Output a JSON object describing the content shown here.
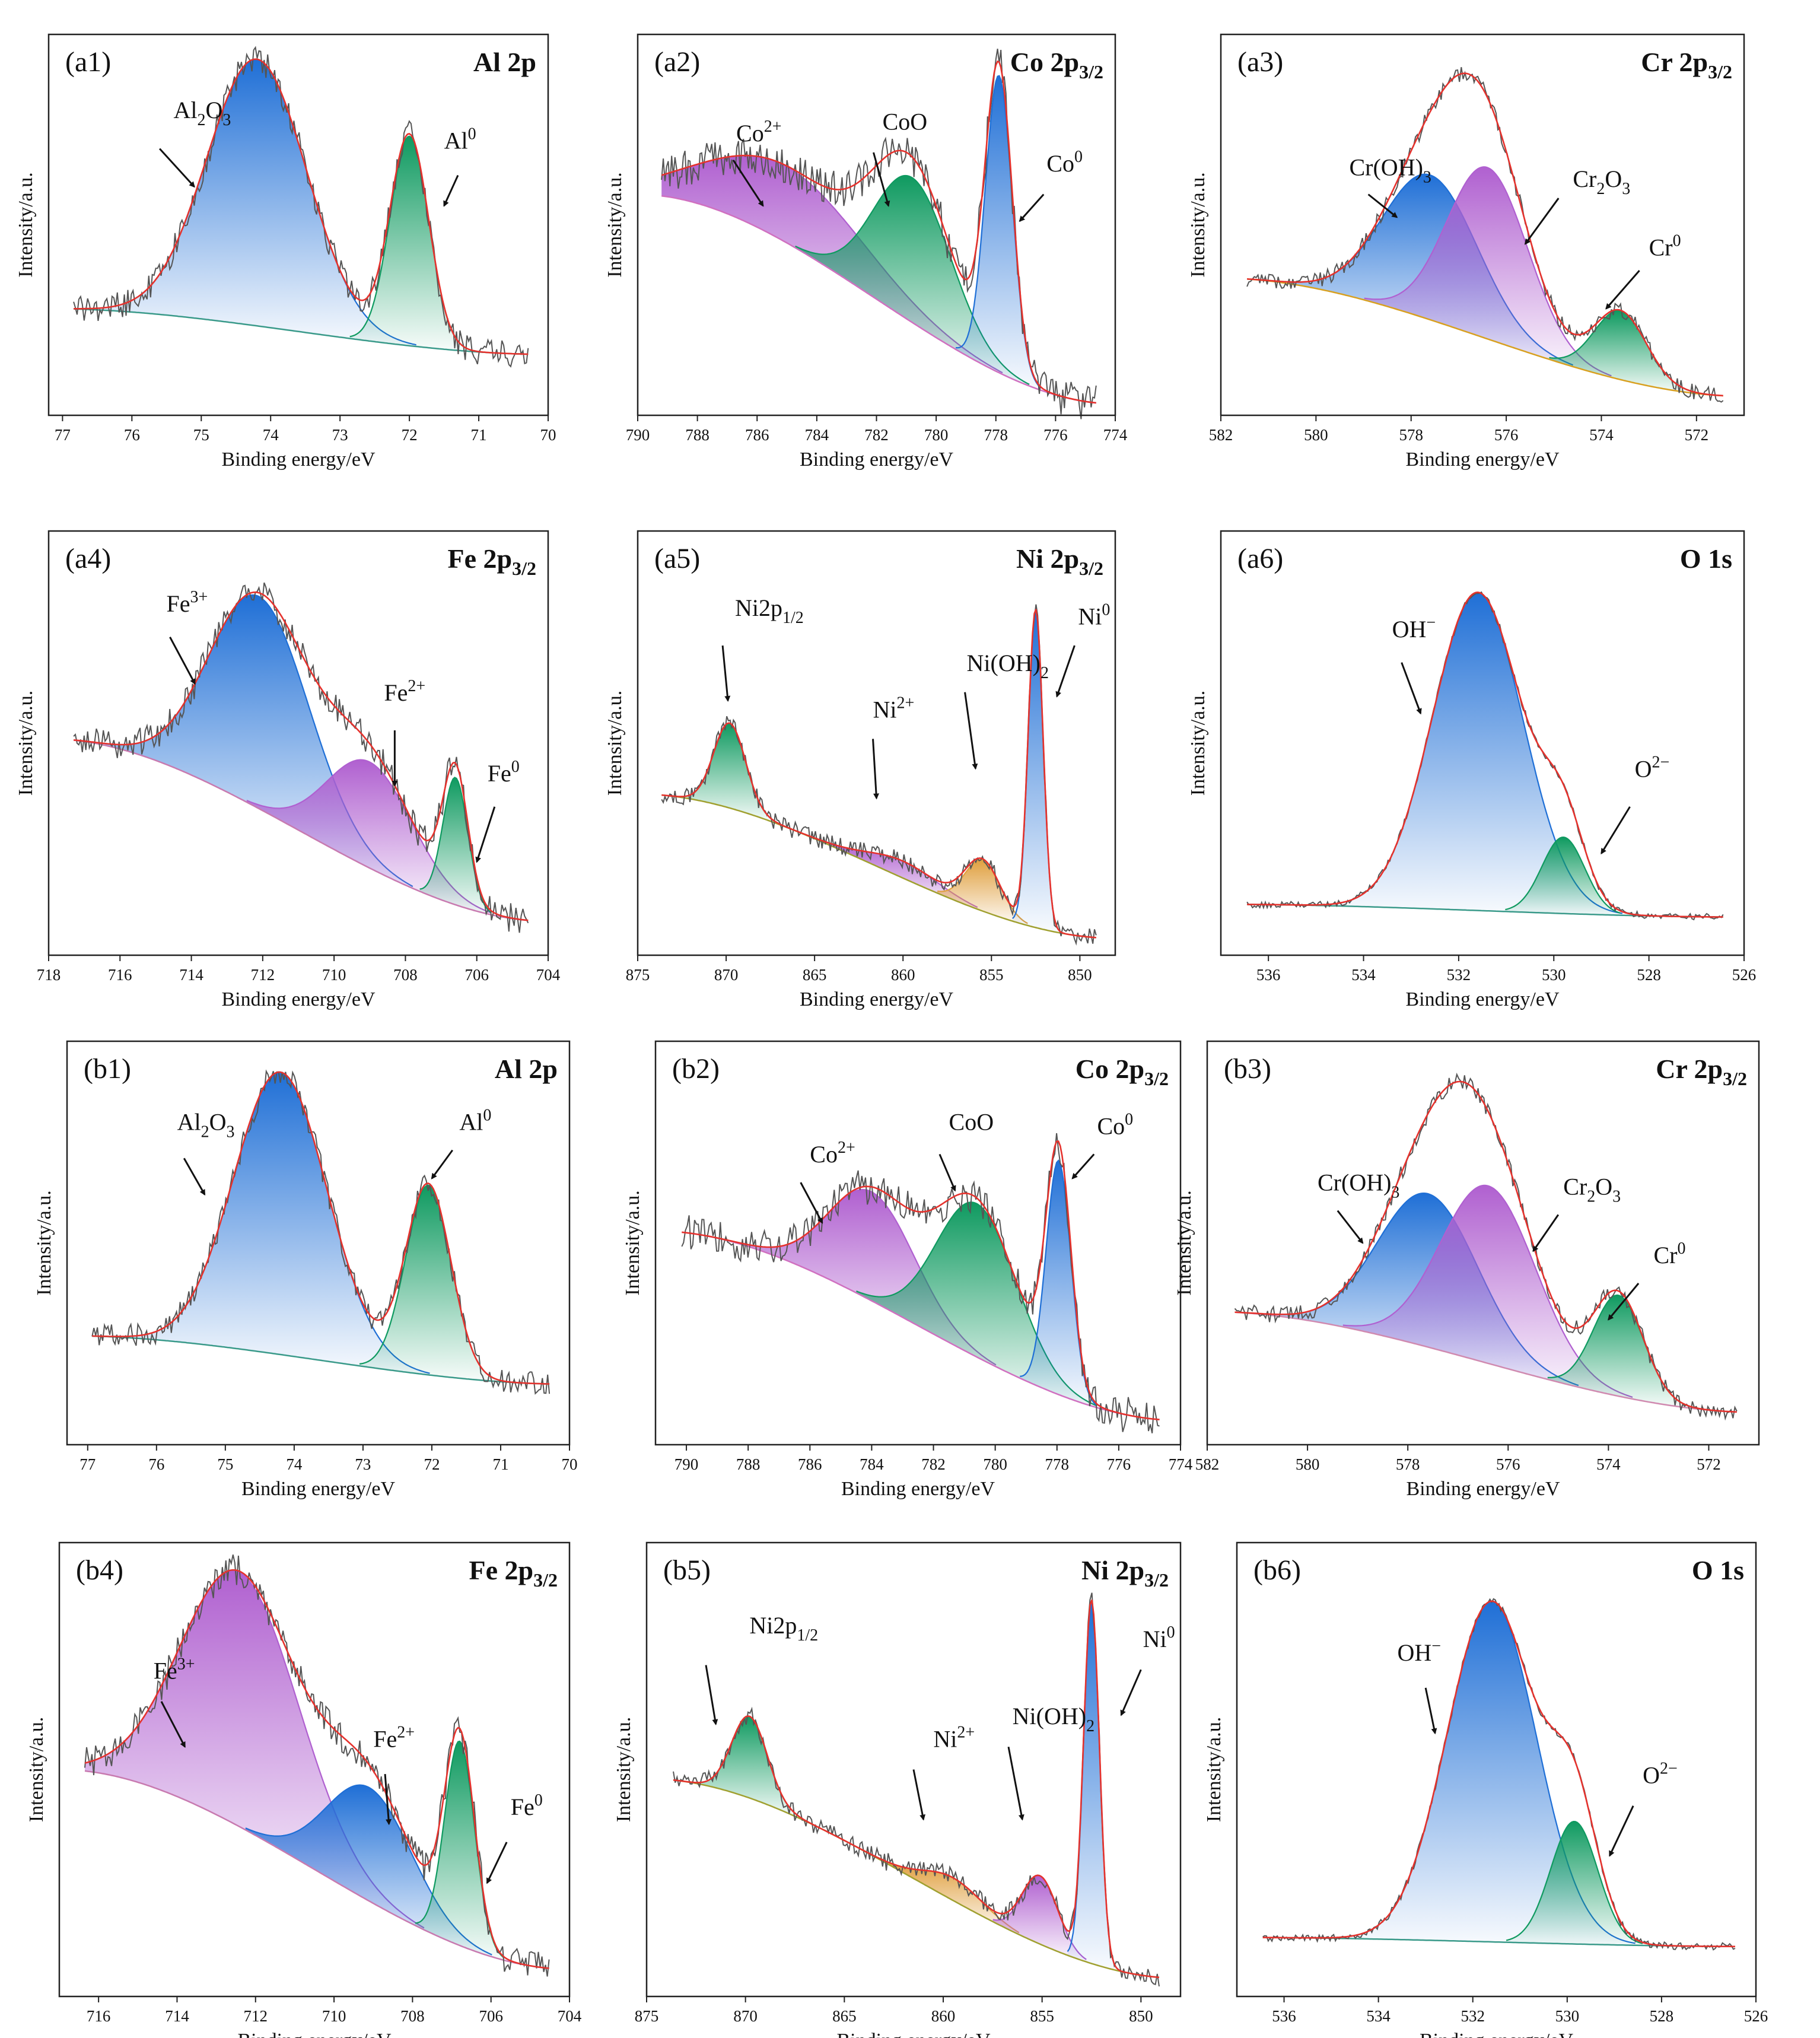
{
  "figure": {
    "description_note": "",
    "y_axis_label": "Intensity/a.u.",
    "x_axis_label": "Binding energy/eV"
  },
  "chart_data": [
    {
      "id": "a1",
      "panel_label": "(a1)",
      "title": "Al 2p",
      "type": "line",
      "xlabel": "Binding energy/eV",
      "ylabel": "Intensity/a.u.",
      "xlim": [
        77.2,
        70
      ],
      "xticks": [
        77,
        76,
        75,
        74,
        73,
        72,
        71,
        70
      ],
      "baseline": {
        "left": 0.72,
        "right": 0.84,
        "color": "#3a9a8a"
      },
      "peaks": [
        {
          "name": "Al2O3",
          "center": 74.2,
          "sigma": 0.72,
          "amp": 0.7,
          "color": "#1f6fd6"
        },
        {
          "name": "Al0",
          "center": 72.0,
          "sigma": 0.28,
          "amp": 0.55,
          "color": "#0f9a60"
        }
      ],
      "noise": 0.035,
      "annotations": [
        {
          "text": "Al",
          "sub": "2",
          "text2": "O",
          "sub2": "3",
          "x": 75.4,
          "y": 0.22,
          "ax": 75.6,
          "ay": 0.3,
          "bx": 75.1,
          "by": 0.4
        },
        {
          "text": "Al",
          "sup": "0",
          "x": 71.5,
          "y": 0.3,
          "ax": 71.3,
          "ay": 0.37,
          "bx": 71.5,
          "by": 0.45
        }
      ]
    },
    {
      "id": "a2",
      "panel_label": "(a2)",
      "title": "Co 2p3/2",
      "title_base": "Co 2p",
      "title_sub": "3/2",
      "type": "line",
      "xlabel": "Binding energy/eV",
      "ylabel": "Intensity/a.u.",
      "xlim": [
        790,
        774
      ],
      "xticks": [
        790,
        788,
        786,
        784,
        782,
        780,
        778,
        776,
        774
      ],
      "baseline": {
        "left": 0.42,
        "right": 0.97,
        "color": "#d070c0"
      },
      "peaks": [
        {
          "name": "Co2+",
          "center": 785.0,
          "sigma": 2.6,
          "amp": 0.2,
          "color": "#b060d0"
        },
        {
          "name": "CoO",
          "center": 780.8,
          "sigma": 1.3,
          "amp": 0.38,
          "color": "#0f9a60"
        },
        {
          "name": "Co0",
          "center": 777.9,
          "sigma": 0.45,
          "amp": 0.78,
          "color": "#1f6fd6"
        }
      ],
      "noise": 0.05,
      "annotations": [
        {
          "text": "Co",
          "sup": "2+",
          "x": 786.7,
          "y": 0.28,
          "ax": 786.8,
          "ay": 0.33,
          "bx": 785.8,
          "by": 0.45
        },
        {
          "text": "CoO",
          "x": 781.8,
          "y": 0.25,
          "ax": 782.1,
          "ay": 0.31,
          "bx": 781.6,
          "by": 0.45
        },
        {
          "text": "Co",
          "sup": "0",
          "x": 776.3,
          "y": 0.36,
          "ax": 776.4,
          "ay": 0.42,
          "bx": 777.2,
          "by": 0.49
        }
      ]
    },
    {
      "id": "a3",
      "panel_label": "(a3)",
      "title": "Cr 2p3/2",
      "title_base": "Cr 2p",
      "title_sub": "3/2",
      "type": "line",
      "xlabel": "Binding energy/eV",
      "ylabel": "Intensity/a.u.",
      "xlim": [
        582,
        571
      ],
      "xticks": [
        582,
        580,
        578,
        576,
        574,
        572
      ],
      "baseline": {
        "left": 0.64,
        "right": 0.95,
        "color": "#d8a020"
      },
      "peaks": [
        {
          "name": "Cr(OH)3",
          "center": 577.6,
          "sigma": 1.0,
          "amp": 0.38,
          "color": "#1f6fd6"
        },
        {
          "name": "Cr2O3",
          "center": 576.4,
          "sigma": 0.85,
          "amp": 0.45,
          "color": "#b060d0"
        },
        {
          "name": "Cr0",
          "center": 573.6,
          "sigma": 0.55,
          "amp": 0.18,
          "color": "#0f9a60"
        }
      ],
      "noise": 0.02,
      "annotations": [
        {
          "text": "Cr(OH)",
          "sub": "3",
          "x": 579.3,
          "y": 0.37,
          "ax": 578.9,
          "ay": 0.42,
          "bx": 578.3,
          "by": 0.48
        },
        {
          "text": "Cr",
          "sub": "2",
          "text2": "O",
          "sub2": "3",
          "x": 574.6,
          "y": 0.4,
          "ax": 574.9,
          "ay": 0.43,
          "bx": 575.6,
          "by": 0.55
        },
        {
          "text": "Cr",
          "sup": "0",
          "x": 573.0,
          "y": 0.58,
          "ax": 573.2,
          "ay": 0.62,
          "bx": 573.9,
          "by": 0.72
        }
      ]
    },
    {
      "id": "a4",
      "panel_label": "(a4)",
      "title": "Fe 2p3/2",
      "title_base": "Fe 2p",
      "title_sub": "3/2",
      "type": "line",
      "xlabel": "Binding energy/eV",
      "ylabel": "Intensity/a.u.",
      "xlim": [
        718,
        704
      ],
      "xticks": [
        718,
        716,
        714,
        712,
        710,
        708,
        706,
        704
      ],
      "baseline": {
        "left": 0.49,
        "right": 0.92,
        "color": "#c87ab0"
      },
      "peaks": [
        {
          "name": "Fe3+",
          "center": 712.1,
          "sigma": 1.4,
          "amp": 0.5,
          "color": "#1f6fd6"
        },
        {
          "name": "Fe2+",
          "center": 709.0,
          "sigma": 1.2,
          "amp": 0.25,
          "color": "#b060d0"
        },
        {
          "name": "Fe0",
          "center": 706.6,
          "sigma": 0.35,
          "amp": 0.3,
          "color": "#0f9a60"
        }
      ],
      "noise": 0.035,
      "annotations": [
        {
          "text": "Fe",
          "sup": "3+",
          "x": 714.7,
          "y": 0.19,
          "ax": 714.6,
          "ay": 0.25,
          "bx": 713.9,
          "by": 0.36
        },
        {
          "text": "Fe",
          "sup": "2+",
          "x": 708.6,
          "y": 0.4,
          "ax": 708.3,
          "ay": 0.47,
          "bx": 708.3,
          "by": 0.6
        },
        {
          "text": "Fe",
          "sup": "0",
          "x": 705.7,
          "y": 0.59,
          "ax": 705.5,
          "ay": 0.65,
          "bx": 706.0,
          "by": 0.78
        }
      ]
    },
    {
      "id": "a5",
      "panel_label": "(a5)",
      "title": "Ni 2p3/2",
      "title_base": "Ni 2p",
      "title_sub": "3/2",
      "type": "line",
      "xlabel": "Binding energy/eV",
      "ylabel": "Intensity/a.u.",
      "xlim": [
        875,
        848
      ],
      "xticks": [
        875,
        870,
        865,
        860,
        855,
        850
      ],
      "baseline": {
        "left": 0.62,
        "right": 0.96,
        "color": "#a0a030"
      },
      "peaks": [
        {
          "name": "Ni2p1/2",
          "center": 869.8,
          "sigma": 0.9,
          "amp": 0.2,
          "color": "#0f9a60"
        },
        {
          "name": "Ni2+",
          "center": 860.0,
          "sigma": 2.0,
          "amp": 0.04,
          "color": "#b060d0"
        },
        {
          "name": "Ni(OH)2",
          "center": 855.5,
          "sigma": 1.0,
          "amp": 0.12,
          "color": "#e0a040"
        },
        {
          "name": "Ni0",
          "center": 852.5,
          "sigma": 0.42,
          "amp": 0.75,
          "color": "#1f6fd6"
        }
      ],
      "noise": 0.02,
      "annotations": [
        {
          "text": "Ni2p",
          "sub": "1/2",
          "x": 869.5,
          "y": 0.2,
          "ax": 870.2,
          "ay": 0.27,
          "bx": 869.9,
          "by": 0.4
        },
        {
          "text": "Ni",
          "sup": "2+",
          "x": 861.7,
          "y": 0.44,
          "ax": 861.7,
          "ay": 0.49,
          "bx": 861.5,
          "by": 0.63
        },
        {
          "text": "Ni(OH)",
          "sub": "2",
          "x": 856.4,
          "y": 0.33,
          "ax": 856.5,
          "ay": 0.38,
          "bx": 855.9,
          "by": 0.56
        },
        {
          "text": "Ni",
          "sup": "0",
          "x": 850.1,
          "y": 0.22,
          "ax": 850.3,
          "ay": 0.27,
          "bx": 851.3,
          "by": 0.39
        }
      ]
    },
    {
      "id": "a6",
      "panel_label": "(a6)",
      "title": "O 1s",
      "type": "line",
      "xlabel": "Binding energy/eV",
      "ylabel": "Intensity/a.u.",
      "xlim": [
        537,
        526
      ],
      "xticks": [
        536,
        534,
        532,
        530,
        528,
        526
      ],
      "baseline": {
        "left": 0.88,
        "right": 0.91,
        "color": "#3a9a8a"
      },
      "peaks": [
        {
          "name": "OH-",
          "center": 531.6,
          "sigma": 0.95,
          "amp": 0.75,
          "color": "#1f6fd6"
        },
        {
          "name": "O2-",
          "center": 529.8,
          "sigma": 0.45,
          "amp": 0.18,
          "color": "#0f9a60"
        }
      ],
      "noise": 0.008,
      "annotations": [
        {
          "text": "OH",
          "sup": "−",
          "x": 533.4,
          "y": 0.25,
          "ax": 533.2,
          "ay": 0.31,
          "bx": 532.8,
          "by": 0.43
        },
        {
          "text": "O",
          "sup": "2−",
          "x": 528.3,
          "y": 0.58,
          "ax": 528.4,
          "ay": 0.65,
          "bx": 529.0,
          "by": 0.76
        }
      ]
    },
    {
      "id": "b1",
      "panel_label": "(b1)",
      "title": "Al 2p",
      "type": "line",
      "xlabel": "Binding energy/eV",
      "ylabel": "Intensity/a.u.",
      "xlim": [
        77.3,
        70
      ],
      "xticks": [
        77,
        76,
        75,
        74,
        73,
        72,
        71,
        70
      ],
      "baseline": {
        "left": 0.73,
        "right": 0.85,
        "color": "#3a9a8a"
      },
      "peaks": [
        {
          "name": "Al2O3",
          "center": 74.2,
          "sigma": 0.68,
          "amp": 0.7,
          "color": "#1f6fd6"
        },
        {
          "name": "Al0",
          "center": 72.05,
          "sigma": 0.33,
          "amp": 0.47,
          "color": "#0f9a60"
        }
      ],
      "noise": 0.03,
      "annotations": [
        {
          "text": "Al",
          "sub": "2",
          "text2": "O",
          "sub2": "3",
          "x": 75.7,
          "y": 0.22,
          "ax": 75.6,
          "ay": 0.29,
          "bx": 75.3,
          "by": 0.38
        },
        {
          "text": "Al",
          "sup": "0",
          "x": 71.6,
          "y": 0.22,
          "ax": 71.7,
          "ay": 0.27,
          "bx": 72.0,
          "by": 0.34
        }
      ]
    },
    {
      "id": "b2",
      "panel_label": "(b2)",
      "title": "Co 2p3/2",
      "title_base": "Co 2p",
      "title_sub": "3/2",
      "type": "line",
      "xlabel": "Binding energy/eV",
      "ylabel": "Intensity/a.u.",
      "xlim": [
        791,
        774
      ],
      "xticks": [
        790,
        788,
        786,
        784,
        782,
        780,
        778,
        776,
        774
      ],
      "baseline": {
        "left": 0.47,
        "right": 0.94,
        "color": "#d070c0"
      },
      "peaks": [
        {
          "name": "Co2+",
          "center": 784.0,
          "sigma": 1.4,
          "amp": 0.27,
          "color": "#b060d0"
        },
        {
          "name": "CoO",
          "center": 780.6,
          "sigma": 1.3,
          "amp": 0.38,
          "color": "#0f9a60"
        },
        {
          "name": "Co0",
          "center": 777.95,
          "sigma": 0.4,
          "amp": 0.58,
          "color": "#1f6fd6"
        }
      ],
      "noise": 0.045,
      "annotations": [
        {
          "text": "Co",
          "sup": "2+",
          "x": 786.0,
          "y": 0.3,
          "ax": 786.3,
          "ay": 0.35,
          "bx": 785.6,
          "by": 0.45
        },
        {
          "text": "CoO",
          "x": 781.5,
          "y": 0.22,
          "ax": 781.8,
          "ay": 0.28,
          "bx": 781.3,
          "by": 0.37
        },
        {
          "text": "Co",
          "sup": "0",
          "x": 776.7,
          "y": 0.23,
          "ax": 776.8,
          "ay": 0.28,
          "bx": 777.5,
          "by": 0.34
        }
      ]
    },
    {
      "id": "b3",
      "panel_label": "(b3)",
      "title": "Cr 2p3/2",
      "title_base": "Cr 2p",
      "title_sub": "3/2",
      "type": "line",
      "xlabel": "Binding energy/eV",
      "ylabel": "Intensity/a.u.",
      "xlim": [
        582,
        571
      ],
      "xticks": [
        582,
        580,
        578,
        576,
        574,
        572
      ],
      "baseline": {
        "left": 0.67,
        "right": 0.92,
        "color": "#d08ab0"
      },
      "peaks": [
        {
          "name": "Cr(OH)3",
          "center": 577.6,
          "sigma": 1.0,
          "amp": 0.38,
          "color": "#1f6fd6"
        },
        {
          "name": "Cr2O3",
          "center": 576.4,
          "sigma": 0.95,
          "amp": 0.44,
          "color": "#b060d0"
        },
        {
          "name": "Cr0",
          "center": 573.8,
          "sigma": 0.5,
          "amp": 0.25,
          "color": "#0f9a60"
        }
      ],
      "noise": 0.02,
      "annotations": [
        {
          "text": "Cr(OH)",
          "sub": "3",
          "x": 579.8,
          "y": 0.37,
          "ax": 579.4,
          "ay": 0.42,
          "bx": 578.9,
          "by": 0.5
        },
        {
          "text": "Cr",
          "sub": "2",
          "text2": "O",
          "sub2": "3",
          "x": 574.9,
          "y": 0.38,
          "ax": 575.0,
          "ay": 0.43,
          "bx": 575.5,
          "by": 0.52
        },
        {
          "text": "Cr",
          "sup": "0",
          "x": 573.1,
          "y": 0.55,
          "ax": 573.4,
          "ay": 0.6,
          "bx": 574.0,
          "by": 0.69
        }
      ]
    },
    {
      "id": "b4",
      "panel_label": "(b4)",
      "title": "Fe 2p3/2",
      "title_base": "Fe 2p",
      "title_sub": "3/2",
      "type": "line",
      "xlabel": "Binding energy/eV",
      "ylabel": "Intensity/a.u.",
      "xlim": [
        717,
        704
      ],
      "xticks": [
        716,
        714,
        712,
        710,
        708,
        706,
        704
      ],
      "baseline": {
        "left": 0.5,
        "right": 0.94,
        "color": "#c87ab0"
      },
      "peaks": [
        {
          "name": "Fe3+",
          "center": 712.4,
          "sigma": 1.5,
          "amp": 0.56,
          "color": "#b060d0"
        },
        {
          "name": "Fe2+",
          "center": 709.1,
          "sigma": 1.1,
          "amp": 0.25,
          "color": "#1f6fd6"
        },
        {
          "name": "Fe0",
          "center": 706.8,
          "sigma": 0.38,
          "amp": 0.45,
          "color": "#0f9a60"
        }
      ],
      "noise": 0.035,
      "annotations": [
        {
          "text": "Fe",
          "sup": "3+",
          "x": 714.6,
          "y": 0.3,
          "ax": 714.4,
          "ay": 0.35,
          "bx": 713.8,
          "by": 0.45
        },
        {
          "text": "Fe",
          "sup": "2+",
          "x": 709.0,
          "y": 0.45,
          "ax": 708.7,
          "ay": 0.51,
          "bx": 708.6,
          "by": 0.62
        },
        {
          "text": "Fe",
          "sup": "0",
          "x": 705.5,
          "y": 0.6,
          "ax": 705.6,
          "ay": 0.66,
          "bx": 706.1,
          "by": 0.75
        }
      ]
    },
    {
      "id": "b5",
      "panel_label": "(b5)",
      "title": "Ni 2p3/2",
      "title_base": "Ni 2p",
      "title_sub": "3/2",
      "type": "line",
      "xlabel": "Binding energy/eV",
      "ylabel": "Intensity/a.u.",
      "xlim": [
        875,
        848
      ],
      "xticks": [
        875,
        870,
        865,
        860,
        855,
        850
      ],
      "baseline": {
        "left": 0.52,
        "right": 0.96,
        "color": "#a0a030"
      },
      "peaks": [
        {
          "name": "Ni2p1/2",
          "center": 869.8,
          "sigma": 0.9,
          "amp": 0.18,
          "color": "#0f9a60"
        },
        {
          "name": "Ni2+",
          "center": 859.5,
          "sigma": 1.5,
          "amp": 0.05,
          "color": "#e0a040"
        },
        {
          "name": "Ni(OH)2",
          "center": 855.1,
          "sigma": 0.9,
          "amp": 0.15,
          "color": "#b060d0"
        },
        {
          "name": "Ni0",
          "center": 852.5,
          "sigma": 0.4,
          "amp": 0.8,
          "color": "#1f6fd6"
        }
      ],
      "noise": 0.02,
      "annotations": [
        {
          "text": "Ni2p",
          "sub": "1/2",
          "x": 869.8,
          "y": 0.2,
          "ax": 872.0,
          "ay": 0.27,
          "bx": 871.5,
          "by": 0.4
        },
        {
          "text": "Ni",
          "sup": "2+",
          "x": 860.5,
          "y": 0.45,
          "ax": 861.5,
          "ay": 0.5,
          "bx": 861.0,
          "by": 0.61
        },
        {
          "text": "Ni(OH)",
          "sub": "2",
          "x": 856.5,
          "y": 0.4,
          "ax": 856.7,
          "ay": 0.45,
          "bx": 856.0,
          "by": 0.61
        },
        {
          "text": "Ni",
          "sup": "0",
          "x": 849.9,
          "y": 0.23,
          "ax": 850.0,
          "ay": 0.28,
          "bx": 851.0,
          "by": 0.38
        }
      ]
    },
    {
      "id": "b6",
      "panel_label": "(b6)",
      "title": "O 1s",
      "type": "line",
      "xlabel": "Binding energy/eV",
      "ylabel": "Intensity/a.u.",
      "xlim": [
        537,
        526
      ],
      "xticks": [
        536,
        534,
        532,
        530,
        528,
        526
      ],
      "baseline": {
        "left": 0.87,
        "right": 0.89,
        "color": "#3a9a8a"
      },
      "peaks": [
        {
          "name": "OH-",
          "center": 531.6,
          "sigma": 0.95,
          "amp": 0.75,
          "color": "#1f6fd6"
        },
        {
          "name": "O2-",
          "center": 529.85,
          "sigma": 0.5,
          "amp": 0.27,
          "color": "#0f9a60"
        }
      ],
      "noise": 0.008,
      "annotations": [
        {
          "text": "OH",
          "sup": "−",
          "x": 533.6,
          "y": 0.26,
          "ax": 533.0,
          "ay": 0.32,
          "bx": 532.8,
          "by": 0.42
        },
        {
          "text": "O",
          "sup": "2−",
          "x": 528.4,
          "y": 0.53,
          "ax": 528.6,
          "ay": 0.58,
          "bx": 529.1,
          "by": 0.69
        }
      ]
    }
  ]
}
